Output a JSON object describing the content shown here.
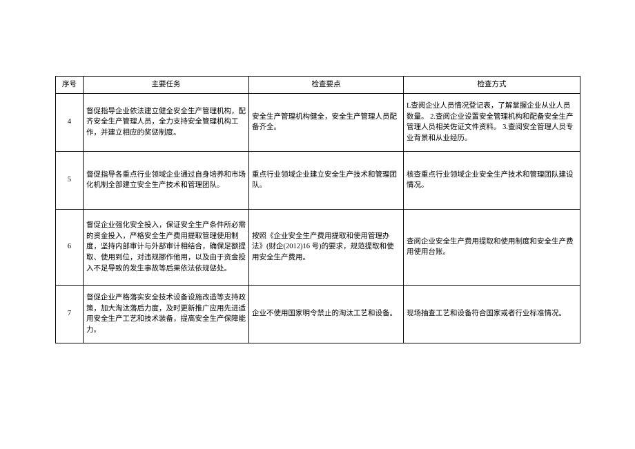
{
  "table": {
    "columns": [
      "序号",
      "主要任务",
      "检查要点",
      "检查方式"
    ],
    "col_widths": [
      "40px",
      "240px",
      "224px",
      "256px"
    ],
    "rows": [
      {
        "seq": "4",
        "task": "督促指导企业依法建立健全安全生产管理机构，配齐安全生产管理人员，全力支持安全管理机构工作，并建立相应的奖惩制度。",
        "point": "安全生产管理机构健全，安全生产管理人员配备齐全。",
        "method": "L查阅企业人员情况登记表，了解掌握企业从业人员数量。\n2.查阅企业设置安全管理机构和配备安全生产管理人员相关佐证文件资料。\n3.查阅安全管理人员专业背景和从业经历。"
      },
      {
        "seq": "5",
        "task": "督促指导各重点行业领域企业通过自身培养和市场化机制全部建立安全生产技术和管理团队。",
        "point": "重点行业领域企业建立安全生产技术和管理团队。",
        "method": "核查重点行业领域企业安全生产技术和管理团队建设情况。"
      },
      {
        "seq": "6",
        "task": "督促企业强化安全投入，保证安全生产条件所必需的资金投入，严格安全生产费用提取管理使用制度，坚持内部审计与外部审计相结合，确保足额提取、使用到位，对违规挪作他用，以及由于资金投入不足导致的发生事故等后果依法依规惩处。",
        "point": "按照《企业安全生产费用提取和使用管理办法》(财企(2012)16 号)的要求，规范提取和使用安全生产费用。",
        "method": "查阅企业安全生产费用提取和使用制度和安全生产费用使用台账。"
      },
      {
        "seq": "7",
        "task": "督促企业严格落实安全技术设备设施改造等支持政策，加大淘汰落后力度，及时更新推广应用先进适用安全生产工艺和技术装备，提高安全生产保障能力。",
        "point": "企业不使用国家明令禁止的淘汰工艺和设备。",
        "method": "现场抽查工艺和设备符合国家或者行业标准情况。"
      }
    ]
  },
  "style": {
    "border_color": "#000000",
    "background_color": "#ffffff",
    "text_color": "#000000",
    "font_size": 10.5,
    "header_align": "center",
    "body_align_seq": "center",
    "body_align_other": "left"
  }
}
